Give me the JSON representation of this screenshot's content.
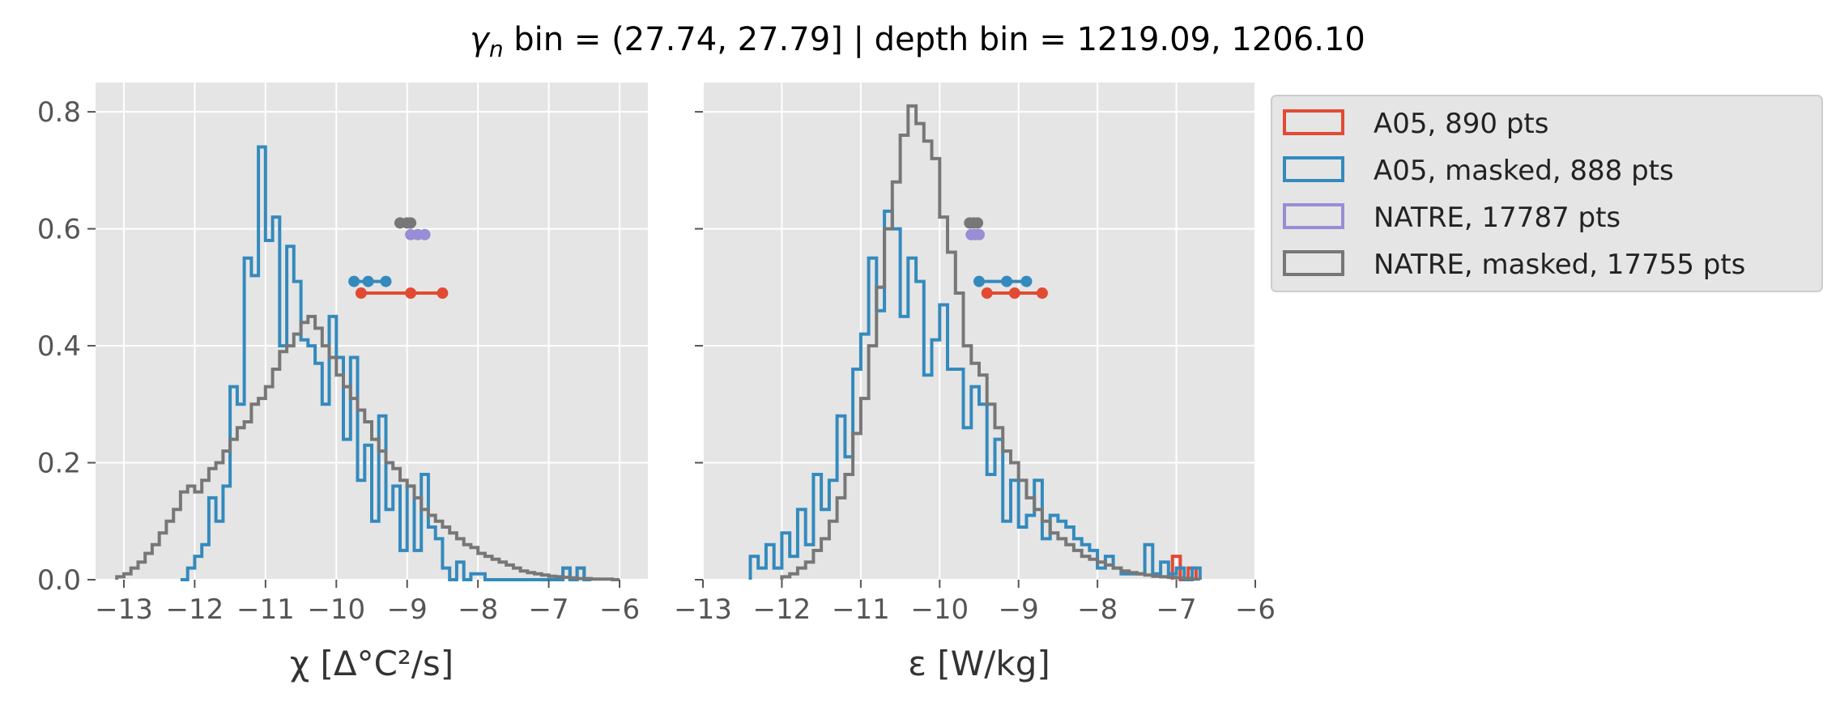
{
  "figure": {
    "title_symbol": "γ",
    "title_sub": "n",
    "title_rest": " bin = (27.74, 27.79] | depth bin = 1219.09, 1206.10"
  },
  "legend": {
    "items": [
      {
        "label": "A05, 890 pts",
        "color": "#E24A33"
      },
      {
        "label": "A05, masked,  888 pts",
        "color": "#348ABD"
      },
      {
        "label": "NATRE, 17787 pts",
        "color": "#988ED5"
      },
      {
        "label": "NATRE, masked,  17755 pts",
        "color": "#777777"
      }
    ]
  },
  "chart_data": [
    {
      "type": "step-histogram",
      "xlabel": "χ [Δ°C²/s]",
      "xlim": [
        -13.4,
        -5.6
      ],
      "ylim": [
        0,
        0.85
      ],
      "xticks": [
        -13,
        -12,
        -11,
        -10,
        -9,
        -8,
        -7,
        -6
      ],
      "xtick_labels": [
        "−13",
        "−12",
        "−11",
        "−10",
        "−9",
        "−8",
        "−7",
        "−6"
      ],
      "yticks": [
        0.0,
        0.2,
        0.4,
        0.6,
        0.8
      ],
      "ytick_labels": [
        "0.0",
        "0.2",
        "0.4",
        "0.6",
        "0.8"
      ],
      "grid": true,
      "series": [
        {
          "name": "A05, 890 pts",
          "color": "#E24A33",
          "bin_edges": [
            -6.8,
            -6.7,
            -6.6,
            -6.5,
            -6.4
          ],
          "density": [
            0.02,
            0.0,
            0.02,
            0.0
          ]
        },
        {
          "name": "A05, masked,  888 pts",
          "color": "#348ABD",
          "bin_edges": [
            -12.2,
            -12.1,
            -12.0,
            -11.9,
            -11.8,
            -11.7,
            -11.6,
            -11.5,
            -11.4,
            -11.3,
            -11.2,
            -11.1,
            -11.0,
            -10.9,
            -10.8,
            -10.7,
            -10.6,
            -10.5,
            -10.4,
            -10.3,
            -10.2,
            -10.1,
            -10.0,
            -9.9,
            -9.8,
            -9.7,
            -9.6,
            -9.5,
            -9.4,
            -9.3,
            -9.2,
            -9.1,
            -9.0,
            -8.9,
            -8.8,
            -8.7,
            -8.6,
            -8.5,
            -8.4,
            -8.3,
            -8.2,
            -8.1,
            -8.0,
            -7.9,
            -7.8,
            -7.7,
            -7.6,
            -7.5,
            -7.4,
            -7.3,
            -7.2,
            -7.1,
            -7.0,
            -6.9,
            -6.8,
            -6.7,
            -6.6,
            -6.5,
            -6.4
          ],
          "density": [
            0.0,
            0.02,
            0.04,
            0.06,
            0.14,
            0.1,
            0.16,
            0.33,
            0.3,
            0.55,
            0.52,
            0.74,
            0.58,
            0.62,
            0.4,
            0.57,
            0.51,
            0.41,
            0.4,
            0.37,
            0.3,
            0.45,
            0.38,
            0.24,
            0.38,
            0.17,
            0.23,
            0.1,
            0.28,
            0.12,
            0.16,
            0.05,
            0.16,
            0.05,
            0.18,
            0.09,
            0.07,
            0.02,
            0.0,
            0.03,
            0.0,
            0.01,
            0.01,
            0.0,
            0.0,
            0.0,
            0.0,
            0.0,
            0.0,
            0.0,
            0.0,
            0.0,
            0.0,
            0.0,
            0.02,
            0.0,
            0.02,
            0.0
          ]
        },
        {
          "name": "NATRE, masked,  17755 pts",
          "color": "#777777",
          "bin_edges": [
            -13.1,
            -13.0,
            -12.9,
            -12.8,
            -12.7,
            -12.6,
            -12.5,
            -12.4,
            -12.3,
            -12.2,
            -12.1,
            -12.0,
            -11.9,
            -11.8,
            -11.7,
            -11.6,
            -11.5,
            -11.4,
            -11.3,
            -11.2,
            -11.1,
            -11.0,
            -10.9,
            -10.8,
            -10.7,
            -10.6,
            -10.5,
            -10.4,
            -10.3,
            -10.2,
            -10.1,
            -10.0,
            -9.9,
            -9.8,
            -9.7,
            -9.6,
            -9.5,
            -9.4,
            -9.3,
            -9.2,
            -9.1,
            -9.0,
            -8.9,
            -8.8,
            -8.7,
            -8.6,
            -8.5,
            -8.4,
            -8.3,
            -8.2,
            -8.1,
            -8.0,
            -7.9,
            -7.8,
            -7.7,
            -7.6,
            -7.5,
            -7.4,
            -7.3,
            -7.2,
            -7.1,
            -7.0,
            -6.9,
            -6.8,
            -6.7,
            -6.6,
            -6.5,
            -6.4,
            -6.3,
            -6.2,
            -6.1,
            -6.0
          ],
          "density": [
            0.005,
            0.01,
            0.02,
            0.03,
            0.045,
            0.06,
            0.08,
            0.1,
            0.12,
            0.15,
            0.16,
            0.15,
            0.17,
            0.19,
            0.2,
            0.22,
            0.24,
            0.26,
            0.27,
            0.3,
            0.31,
            0.33,
            0.36,
            0.39,
            0.4,
            0.42,
            0.44,
            0.45,
            0.43,
            0.4,
            0.38,
            0.35,
            0.33,
            0.31,
            0.29,
            0.27,
            0.24,
            0.22,
            0.2,
            0.19,
            0.17,
            0.16,
            0.14,
            0.12,
            0.11,
            0.1,
            0.09,
            0.08,
            0.07,
            0.06,
            0.055,
            0.045,
            0.04,
            0.035,
            0.03,
            0.025,
            0.02,
            0.015,
            0.012,
            0.01,
            0.008,
            0.006,
            0.005,
            0.004,
            0.003,
            0.002,
            0.002,
            0.001,
            0.001,
            0.001,
            0.0
          ]
        }
      ],
      "range_markers": [
        {
          "series": "A05, 890 pts",
          "color": "#E24A33",
          "y": 0.49,
          "x": [
            -9.65,
            -8.95,
            -8.5
          ]
        },
        {
          "series": "A05, masked,  888 pts",
          "color": "#348ABD",
          "y": 0.51,
          "x": [
            -9.75,
            -9.55,
            -9.3
          ]
        },
        {
          "series": "NATRE, 17787 pts",
          "color": "#988ED5",
          "y": 0.59,
          "x": [
            -8.95,
            -8.85,
            -8.75
          ]
        },
        {
          "series": "NATRE, masked,  17755 pts",
          "color": "#777777",
          "y": 0.61,
          "x": [
            -9.1,
            -9.0,
            -8.95
          ]
        }
      ]
    },
    {
      "type": "step-histogram",
      "xlabel": "ε [W/kg]",
      "xlim": [
        -13,
        -6
      ],
      "ylim": [
        0,
        0.85
      ],
      "xticks": [
        -13,
        -12,
        -11,
        -10,
        -9,
        -8,
        -7,
        -6
      ],
      "xtick_labels": [
        "−13",
        "−12",
        "−11",
        "−10",
        "−9",
        "−8",
        "−7",
        "−6"
      ],
      "yticks": [
        0.0,
        0.2,
        0.4,
        0.6,
        0.8
      ],
      "grid": true,
      "series": [
        {
          "name": "A05, 890 pts",
          "color": "#E24A33",
          "bin_edges": [
            -7.05,
            -6.95,
            -6.85,
            -6.75
          ],
          "density": [
            0.04,
            0.0,
            0.02
          ]
        },
        {
          "name": "A05, masked,  888 pts",
          "color": "#348ABD",
          "bin_edges": [
            -12.4,
            -12.3,
            -12.2,
            -12.1,
            -12.0,
            -11.9,
            -11.8,
            -11.7,
            -11.6,
            -11.5,
            -11.4,
            -11.3,
            -11.2,
            -11.1,
            -11.0,
            -10.9,
            -10.8,
            -10.7,
            -10.6,
            -10.5,
            -10.4,
            -10.3,
            -10.2,
            -10.1,
            -10.0,
            -9.9,
            -9.8,
            -9.7,
            -9.6,
            -9.5,
            -9.4,
            -9.3,
            -9.2,
            -9.1,
            -9.0,
            -8.9,
            -8.8,
            -8.7,
            -8.6,
            -8.5,
            -8.4,
            -8.3,
            -8.2,
            -8.1,
            -8.0,
            -7.9,
            -7.8,
            -7.7,
            -7.6,
            -7.5,
            -7.4,
            -7.3,
            -7.2,
            -7.1,
            -7.0,
            -6.9,
            -6.8,
            -6.7
          ],
          "density": [
            0.04,
            0.02,
            0.06,
            0.02,
            0.08,
            0.04,
            0.12,
            0.06,
            0.18,
            0.12,
            0.17,
            0.28,
            0.21,
            0.36,
            0.42,
            0.55,
            0.46,
            0.63,
            0.6,
            0.45,
            0.55,
            0.51,
            0.35,
            0.41,
            0.47,
            0.36,
            0.36,
            0.26,
            0.33,
            0.3,
            0.18,
            0.24,
            0.1,
            0.17,
            0.09,
            0.11,
            0.17,
            0.07,
            0.11,
            0.1,
            0.09,
            0.07,
            0.06,
            0.05,
            0.02,
            0.04,
            0.02,
            0.01,
            0.01,
            0.01,
            0.06,
            0.01,
            0.03,
            0.01,
            0.02,
            0.0,
            0.02
          ]
        },
        {
          "name": "NATRE, masked,  17755 pts",
          "color": "#777777",
          "bin_edges": [
            -12.0,
            -11.9,
            -11.8,
            -11.7,
            -11.6,
            -11.5,
            -11.4,
            -11.3,
            -11.2,
            -11.1,
            -11.0,
            -10.9,
            -10.8,
            -10.7,
            -10.6,
            -10.5,
            -10.4,
            -10.3,
            -10.2,
            -10.1,
            -10.0,
            -9.9,
            -9.8,
            -9.7,
            -9.6,
            -9.5,
            -9.4,
            -9.3,
            -9.2,
            -9.1,
            -9.0,
            -8.9,
            -8.8,
            -8.7,
            -8.6,
            -8.5,
            -8.4,
            -8.3,
            -8.2,
            -8.1,
            -8.0,
            -7.9,
            -7.8,
            -7.7,
            -7.6,
            -7.5,
            -7.4,
            -7.3,
            -7.2,
            -7.1,
            -7.0,
            -6.9,
            -6.8,
            -6.7
          ],
          "density": [
            0.005,
            0.01,
            0.02,
            0.03,
            0.05,
            0.07,
            0.1,
            0.14,
            0.18,
            0.25,
            0.31,
            0.4,
            0.5,
            0.6,
            0.68,
            0.76,
            0.81,
            0.78,
            0.75,
            0.72,
            0.62,
            0.56,
            0.49,
            0.4,
            0.37,
            0.35,
            0.3,
            0.26,
            0.22,
            0.2,
            0.17,
            0.14,
            0.12,
            0.1,
            0.08,
            0.07,
            0.06,
            0.05,
            0.04,
            0.035,
            0.03,
            0.025,
            0.02,
            0.015,
            0.012,
            0.01,
            0.008,
            0.006,
            0.005,
            0.004,
            0.003,
            0.002,
            0.001
          ]
        }
      ],
      "range_markers": [
        {
          "series": "A05, 890 pts",
          "color": "#E24A33",
          "y": 0.49,
          "x": [
            -9.4,
            -9.05,
            -8.7
          ]
        },
        {
          "series": "A05, masked,  888 pts",
          "color": "#348ABD",
          "y": 0.51,
          "x": [
            -9.5,
            -9.15,
            -8.9
          ]
        },
        {
          "series": "NATRE, 17787 pts",
          "color": "#988ED5",
          "y": 0.59,
          "x": [
            -9.6,
            -9.55,
            -9.5
          ]
        },
        {
          "series": "NATRE, masked,  17755 pts",
          "color": "#777777",
          "y": 0.61,
          "x": [
            -9.62,
            -9.57,
            -9.52
          ]
        }
      ]
    }
  ]
}
